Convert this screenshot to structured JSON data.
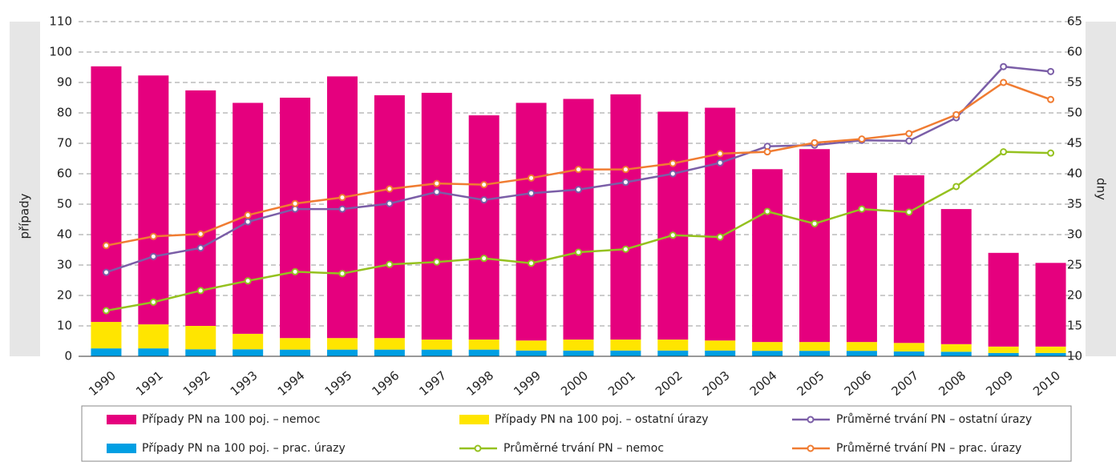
{
  "chart_data": {
    "type": "bar",
    "stacked": true,
    "ylabel": "případy",
    "y2label": "dny",
    "categories": [
      "1990",
      "1991",
      "1992",
      "1993",
      "1994",
      "1995",
      "1996",
      "1997",
      "1998",
      "1999",
      "2000",
      "2001",
      "2002",
      "2003",
      "2004",
      "2005",
      "2006",
      "2007",
      "2008",
      "2009",
      "2010"
    ],
    "ylim": [
      0,
      110
    ],
    "yticks": [
      0,
      10,
      20,
      30,
      40,
      50,
      60,
      70,
      80,
      90,
      100,
      110
    ],
    "y2lim": [
      10,
      65
    ],
    "y2ticks": [
      10,
      15,
      20,
      25,
      30,
      35,
      40,
      45,
      50,
      55,
      60,
      65
    ],
    "grid": true,
    "series": [
      {
        "name": "Případy PN na 100 poj. – nemoc",
        "type": "bar",
        "color": "#e5007e",
        "values": [
          84.0,
          81.8,
          77.4,
          75.9,
          79.0,
          86.0,
          79.8,
          81.1,
          73.7,
          78.1,
          79.1,
          80.6,
          74.9,
          76.5,
          56.8,
          63.4,
          55.6,
          55.1,
          44.4,
          30.8,
          27.5
        ]
      },
      {
        "name": "Případy PN na 100 poj. – ostatní úrazy",
        "type": "bar",
        "color": "#ffe500",
        "values": [
          8.7,
          7.9,
          7.7,
          5.1,
          3.8,
          3.8,
          3.8,
          3.3,
          3.3,
          3.3,
          3.6,
          3.6,
          3.6,
          3.3,
          2.9,
          2.9,
          2.9,
          2.8,
          2.5,
          2.1,
          2.1
        ]
      },
      {
        "name": "Případy PN na 100 poj. – prac. úrazy",
        "type": "bar",
        "color": "#009fe3",
        "values": [
          2.6,
          2.6,
          2.3,
          2.3,
          2.2,
          2.2,
          2.2,
          2.2,
          2.2,
          1.9,
          1.9,
          1.9,
          1.9,
          1.9,
          1.8,
          1.8,
          1.8,
          1.6,
          1.5,
          1.1,
          1.1
        ]
      },
      {
        "name": "Průměrné trvání PN – nemoc",
        "type": "line",
        "axis": "y2",
        "color": "#95c11f",
        "values": [
          17.5,
          18.9,
          20.8,
          22.4,
          23.9,
          23.6,
          25.1,
          25.5,
          26.1,
          25.3,
          27.1,
          27.6,
          29.9,
          29.6,
          33.8,
          31.8,
          34.2,
          33.7,
          37.9,
          43.6,
          43.4
        ]
      },
      {
        "name": "Průměrné trvání PN – ostatní úrazy",
        "type": "line",
        "axis": "y2",
        "color": "#7b5ea7",
        "values": [
          23.8,
          26.4,
          27.8,
          32.1,
          34.2,
          34.2,
          35.1,
          37.0,
          35.7,
          36.8,
          37.4,
          38.6,
          40.0,
          41.8,
          44.5,
          44.7,
          45.5,
          45.4,
          49.2,
          57.6,
          56.8
        ]
      },
      {
        "name": "Průměrné trvání PN – prac. úrazy",
        "type": "line",
        "axis": "y2",
        "color": "#f07c32",
        "values": [
          28.2,
          29.7,
          30.1,
          33.2,
          35.1,
          36.1,
          37.5,
          38.4,
          38.2,
          39.3,
          40.7,
          40.7,
          41.7,
          43.3,
          43.6,
          45.1,
          45.7,
          46.6,
          49.7,
          55.0,
          52.2
        ]
      }
    ]
  }
}
